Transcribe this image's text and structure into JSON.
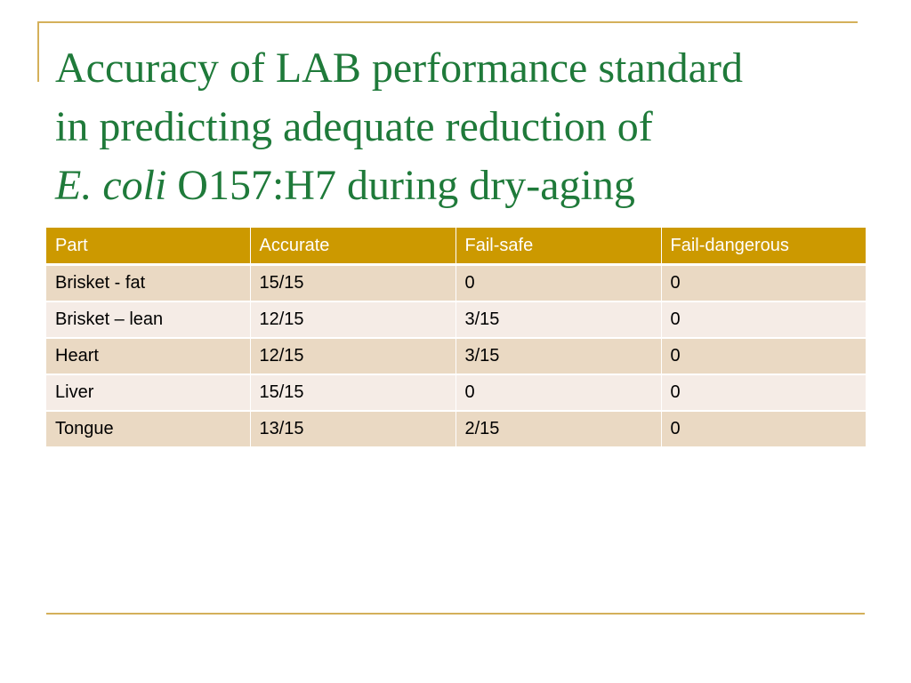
{
  "slide": {
    "title": {
      "line1": "Accuracy of LAB performance standard",
      "line2": "in predicting adequate reduction of",
      "line3_italic": "E. coli",
      "line3_rest": " O157:H7 during dry-aging"
    },
    "table": {
      "headers": [
        "Part",
        "Accurate",
        "Fail-safe",
        "Fail-dangerous"
      ],
      "rows": [
        [
          "Brisket - fat",
          "15/15",
          "0",
          "0"
        ],
        [
          "Brisket – lean",
          "12/15",
          "3/15",
          "0"
        ],
        [
          "Heart",
          "12/15",
          "3/15",
          "0"
        ],
        [
          "Liver",
          "15/15",
          "0",
          "0"
        ],
        [
          "Tongue",
          "13/15",
          "2/15",
          "0"
        ]
      ]
    },
    "colors": {
      "title": "#1f7a3a",
      "accent_line": "#d4b05a",
      "header_bg": "#cc9900",
      "row_odd": "#ead9c3",
      "row_even": "#f5ece6"
    }
  }
}
